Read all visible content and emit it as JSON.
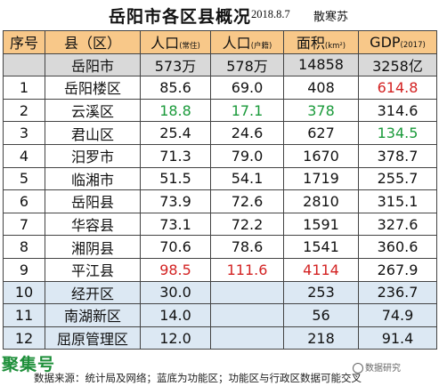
{
  "title": {
    "main": "岳阳市各区县概况",
    "date": "2018.8.7",
    "author": "散寒苏"
  },
  "headers": {
    "seq": "序号",
    "county": "县（区）",
    "pop_res": "人口",
    "pop_res_sub": "(常住)",
    "pop_reg": "人口",
    "pop_reg_sub": "(户籍)",
    "area": "面积",
    "area_sub": "(km²)",
    "gdp": "GDP",
    "gdp_sub": "(2017)"
  },
  "total": {
    "name": "岳阳市",
    "pop_res": "573万",
    "pop_reg": "578万",
    "area": "14858",
    "gdp": "3258亿"
  },
  "rows": [
    {
      "seq": "1",
      "name": "岳阳楼区",
      "pop_res": "85.6",
      "pop_reg": "69.0",
      "area": "408",
      "gdp": "614.8"
    },
    {
      "seq": "2",
      "name": "云溪区",
      "pop_res": "18.8",
      "pop_reg": "17.1",
      "area": "378",
      "gdp": "314.6"
    },
    {
      "seq": "3",
      "name": "君山区",
      "pop_res": "25.4",
      "pop_reg": "24.6",
      "area": "627",
      "gdp": "134.5"
    },
    {
      "seq": "4",
      "name": "汨罗市",
      "pop_res": "71.3",
      "pop_reg": "79.0",
      "area": "1670",
      "gdp": "378.7"
    },
    {
      "seq": "5",
      "name": "临湘市",
      "pop_res": "51.5",
      "pop_reg": "54.1",
      "area": "1719",
      "gdp": "255.7"
    },
    {
      "seq": "6",
      "name": "岳阳县",
      "pop_res": "73.9",
      "pop_reg": "72.6",
      "area": "2810",
      "gdp": "315.1"
    },
    {
      "seq": "7",
      "name": "华容县",
      "pop_res": "73.1",
      "pop_reg": "72.2",
      "area": "1591",
      "gdp": "327.6"
    },
    {
      "seq": "8",
      "name": "湘阴县",
      "pop_res": "70.6",
      "pop_reg": "78.6",
      "area": "1541",
      "gdp": "360.6"
    },
    {
      "seq": "9",
      "name": "平江县",
      "pop_res": "98.5",
      "pop_reg": "111.6",
      "area": "4114",
      "gdp": "267.9"
    },
    {
      "seq": "10",
      "name": "经开区",
      "pop_res": "30.0",
      "pop_reg": "",
      "area": "253",
      "gdp": "236.7"
    },
    {
      "seq": "11",
      "name": "南湖新区",
      "pop_res": "14.0",
      "pop_reg": "",
      "area": "56",
      "gdp": "74.9"
    },
    {
      "seq": "12",
      "name": "屈原管理区",
      "pop_res": "12.0",
      "pop_reg": "",
      "area": "218",
      "gdp": "91.4"
    }
  ],
  "colors": {
    "header_bg": "#f8c889",
    "total_bg": "#d9d9d9",
    "function_zone_bg": "#dce8f3",
    "max_value": "#d32222",
    "min_value": "#1a9a3a"
  },
  "footer": {
    "source": "数据来源：统计局及网络；蓝底为功能区；功能区与行政区数据可能交叉"
  },
  "watermark": {
    "left": "聚集号",
    "right": "数据研究"
  }
}
